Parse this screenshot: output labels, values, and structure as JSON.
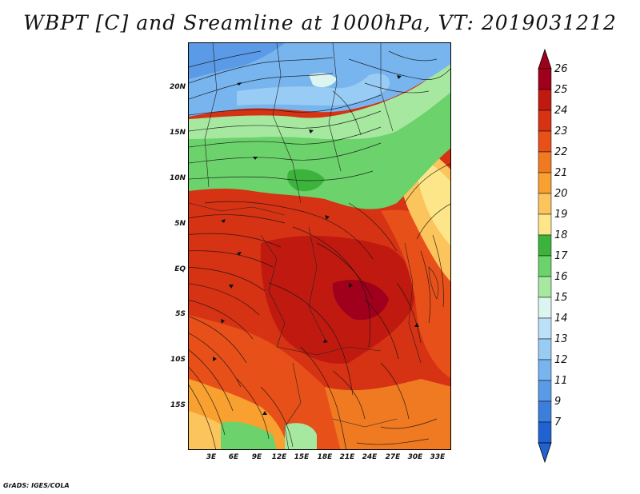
{
  "title": "WBPT [C] and Sreamline at 1000hPa, VT: 2019031212",
  "footer": "GrADS: IGES/COLA",
  "map": {
    "lat_labels": [
      "20N",
      "15N",
      "10N",
      "5N",
      "EQ",
      "5S",
      "10S",
      "15S"
    ],
    "lon_labels": [
      "3E",
      "6E",
      "9E",
      "12E",
      "15E",
      "18E",
      "21E",
      "24E",
      "27E",
      "30E",
      "33E"
    ]
  },
  "colorbar": {
    "labels": [
      "26",
      "25",
      "24",
      "23",
      "22",
      "21",
      "20",
      "19",
      "18",
      "17",
      "16",
      "15",
      "14",
      "13",
      "12",
      "11",
      "9",
      "7"
    ],
    "colors": [
      "#a0001c",
      "#c01a10",
      "#d63214",
      "#e8501a",
      "#f07a22",
      "#f8a030",
      "#fcc45c",
      "#fde68a",
      "#3cb43c",
      "#6cd26c",
      "#a6e8a0",
      "#dcf5f0",
      "#bce0f8",
      "#98ccf4",
      "#78b4ee",
      "#5a9ae6",
      "#3c7edc",
      "#2062d0"
    ]
  }
}
